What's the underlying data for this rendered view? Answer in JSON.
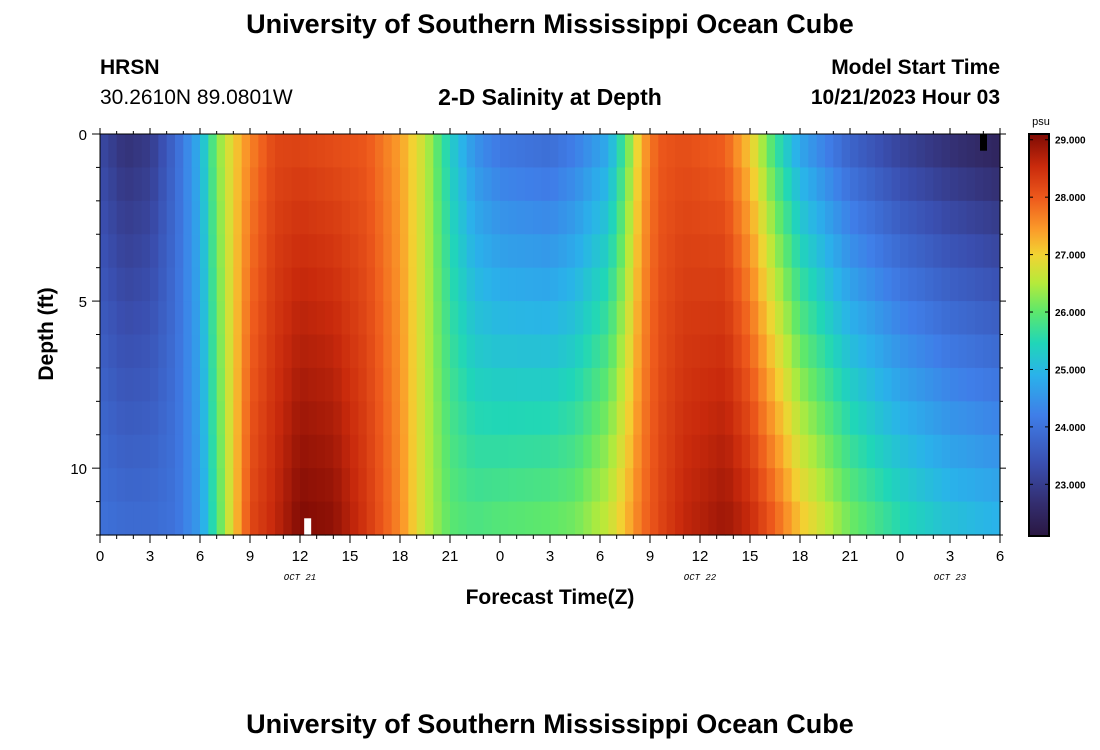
{
  "page": {
    "title_top": "University of Southern Mississippi Ocean Cube",
    "title_bottom": "University of Southern Mississippi Ocean Cube",
    "station_id": "HRSN",
    "station_coords": "30.2610N  89.0801W",
    "plot_title": "2-D Salinity at Depth",
    "model_start_label": "Model Start Time",
    "model_start_value": "10/21/2023 Hour 03"
  },
  "chart_data": {
    "type": "heatmap",
    "title": "2-D Salinity at Depth",
    "xlabel": "Forecast Time(Z)",
    "ylabel": "Depth (ft)",
    "x_tick_labels": [
      "0",
      "3",
      "6",
      "9",
      "12",
      "15",
      "18",
      "21",
      "0",
      "3",
      "6",
      "9",
      "12",
      "15",
      "18",
      "21",
      "0",
      "3",
      "6"
    ],
    "x_range_hours": [
      0,
      54
    ],
    "date_labels": [
      {
        "text": "OCT 21",
        "hour": 12
      },
      {
        "text": "OCT 22",
        "hour": 36
      },
      {
        "text": "OCT 23",
        "hour": 51
      }
    ],
    "y_tick_labels": [
      "0",
      "5",
      "10"
    ],
    "y_tick_values": [
      0,
      5,
      10
    ],
    "y_range_ft": [
      0,
      12
    ],
    "depth_levels": 12,
    "time_columns": 108,
    "colorbar": {
      "unit": "psu",
      "min": 22.1,
      "max": 29.1,
      "ticks": [
        23.0,
        24.0,
        25.0,
        26.0,
        27.0,
        28.0,
        29.0
      ],
      "tick_labels": [
        "23.000",
        "24.000",
        "25.000",
        "26.000",
        "27.000",
        "28.000",
        "29.000"
      ]
    },
    "salinity_keyframes": [
      {
        "hour": 0.0,
        "surface": 23.2,
        "bottom": 24.0
      },
      {
        "hour": 1.5,
        "surface": 22.7,
        "bottom": 23.9
      },
      {
        "hour": 3.0,
        "surface": 22.9,
        "bottom": 23.9
      },
      {
        "hour": 4.5,
        "surface": 23.8,
        "bottom": 24.0
      },
      {
        "hour": 6.0,
        "surface": 24.9,
        "bottom": 24.6
      },
      {
        "hour": 7.0,
        "surface": 26.2,
        "bottom": 25.8
      },
      {
        "hour": 8.0,
        "surface": 27.0,
        "bottom": 27.0
      },
      {
        "hour": 9.0,
        "surface": 27.6,
        "bottom": 28.2
      },
      {
        "hour": 10.5,
        "surface": 28.2,
        "bottom": 28.6
      },
      {
        "hour": 12.0,
        "surface": 28.2,
        "bottom": 29.1
      },
      {
        "hour": 14.0,
        "surface": 28.1,
        "bottom": 29.0
      },
      {
        "hour": 16.0,
        "surface": 28.0,
        "bottom": 28.4
      },
      {
        "hour": 18.0,
        "surface": 27.4,
        "bottom": 27.6
      },
      {
        "hour": 19.5,
        "surface": 26.6,
        "bottom": 26.6
      },
      {
        "hour": 21.0,
        "surface": 25.3,
        "bottom": 26.0
      },
      {
        "hour": 22.5,
        "surface": 24.4,
        "bottom": 25.9
      },
      {
        "hour": 24.0,
        "surface": 24.0,
        "bottom": 26.0
      },
      {
        "hour": 27.0,
        "surface": 23.8,
        "bottom": 26.1
      },
      {
        "hour": 28.5,
        "surface": 24.1,
        "bottom": 26.2
      },
      {
        "hour": 30.5,
        "surface": 24.7,
        "bottom": 26.7
      },
      {
        "hour": 31.5,
        "surface": 25.8,
        "bottom": 27.2
      },
      {
        "hour": 32.5,
        "surface": 27.3,
        "bottom": 27.8
      },
      {
        "hour": 33.5,
        "surface": 28.0,
        "bottom": 28.2
      },
      {
        "hour": 35.0,
        "surface": 28.1,
        "bottom": 28.6
      },
      {
        "hour": 37.5,
        "surface": 27.9,
        "bottom": 28.9
      },
      {
        "hour": 39.0,
        "surface": 27.0,
        "bottom": 28.6
      },
      {
        "hour": 40.5,
        "surface": 25.6,
        "bottom": 28.0
      },
      {
        "hour": 42.0,
        "surface": 24.6,
        "bottom": 27.2
      },
      {
        "hour": 45.0,
        "surface": 23.6,
        "bottom": 26.2
      },
      {
        "hour": 48.0,
        "surface": 23.0,
        "bottom": 25.6
      },
      {
        "hour": 51.0,
        "surface": 22.6,
        "bottom": 25.2
      },
      {
        "hour": 54.0,
        "surface": 22.3,
        "bottom": 25.0
      }
    ]
  }
}
